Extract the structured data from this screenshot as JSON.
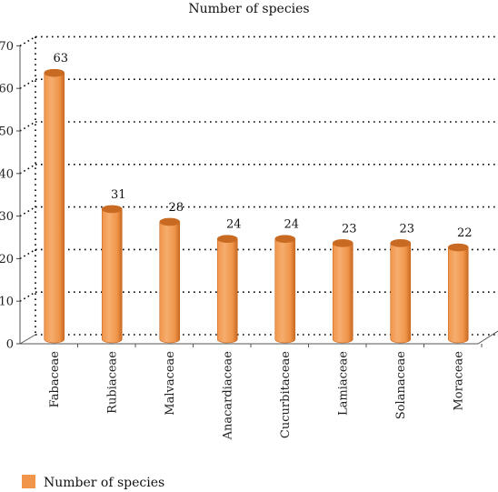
{
  "chart_data": {
    "type": "bar",
    "title": "Number of species",
    "categories": [
      "Fabaceae",
      "Rubiaceae",
      "Malvaceae",
      "Anacardiaceae",
      "Cucurbitaceae",
      "Lamiaceae",
      "Solanaceae",
      "Moraceae"
    ],
    "series": [
      {
        "name": "Number of species",
        "values": [
          63,
          31,
          28,
          24,
          24,
          23,
          23,
          22
        ]
      }
    ],
    "ylim": [
      0,
      70
    ],
    "yticks": [
      0,
      10,
      20,
      30,
      40,
      50,
      60,
      70
    ],
    "grid": "dotted horizontal",
    "legend_position": "bottom-left",
    "bar_style": "3d cylinder",
    "colors": {
      "bar": "#F0954A",
      "bar_shade": "#C96A22",
      "bar_top": "#F6AD6E"
    }
  }
}
